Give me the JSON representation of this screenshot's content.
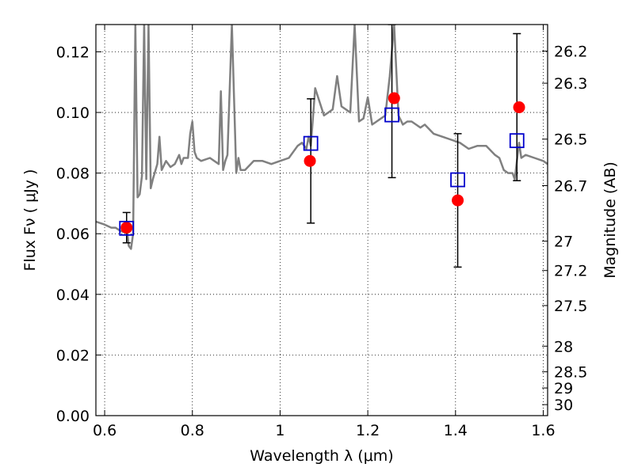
{
  "chart_data": {
    "type": "scatter",
    "xlabel": "Wavelength  λ (μm)",
    "ylabel": "Flux  Fν  ( μJy )",
    "ylabel_right": "Magnitude (AB)",
    "xlim": [
      0.58,
      1.61
    ],
    "ylim": [
      0.0,
      0.129
    ],
    "grid": true,
    "x_ticks": [
      {
        "value": 0.6,
        "label": "0.6"
      },
      {
        "value": 0.8,
        "label": "0.8"
      },
      {
        "value": 1.0,
        "label": "1"
      },
      {
        "value": 1.2,
        "label": "1.2"
      },
      {
        "value": 1.4,
        "label": "1.4"
      },
      {
        "value": 1.6,
        "label": "1.6"
      }
    ],
    "y_ticks": [
      {
        "value": 0.0,
        "label": "0.00"
      },
      {
        "value": 0.02,
        "label": "0.02"
      },
      {
        "value": 0.04,
        "label": "0.04"
      },
      {
        "value": 0.06,
        "label": "0.06"
      },
      {
        "value": 0.08,
        "label": "0.08"
      },
      {
        "value": 0.1,
        "label": "0.10"
      },
      {
        "value": 0.12,
        "label": "0.12"
      }
    ],
    "mag_ticks": [
      {
        "value": 26.2,
        "label": "26.2"
      },
      {
        "value": 26.3,
        "label": "26.3"
      },
      {
        "value": 26.5,
        "label": "26.5"
      },
      {
        "value": 26.7,
        "label": "26.7"
      },
      {
        "value": 27.0,
        "label": "27"
      },
      {
        "value": 27.2,
        "label": "27.2"
      },
      {
        "value": 27.5,
        "label": "27.5"
      },
      {
        "value": 28.0,
        "label": "28"
      },
      {
        "value": 28.5,
        "label": "28.5"
      },
      {
        "value": 29.0,
        "label": "29"
      },
      {
        "value": 30.0,
        "label": "30"
      }
    ],
    "series": [
      {
        "kind": "line",
        "color": "#808080",
        "x": [
          0.58,
          0.6,
          0.615,
          0.625,
          0.635,
          0.645,
          0.652,
          0.655,
          0.66,
          0.665,
          0.67,
          0.675,
          0.68,
          0.685,
          0.69,
          0.695,
          0.7,
          0.705,
          0.71,
          0.72,
          0.725,
          0.73,
          0.74,
          0.75,
          0.76,
          0.77,
          0.775,
          0.78,
          0.79,
          0.795,
          0.8,
          0.805,
          0.81,
          0.82,
          0.84,
          0.86,
          0.865,
          0.87,
          0.875,
          0.88,
          0.89,
          0.9,
          0.905,
          0.91,
          0.92,
          0.94,
          0.96,
          0.98,
          1.0,
          1.02,
          1.04,
          1.05,
          1.06,
          1.065,
          1.07,
          1.08,
          1.1,
          1.11,
          1.12,
          1.13,
          1.14,
          1.15,
          1.16,
          1.17,
          1.18,
          1.19,
          1.2,
          1.21,
          1.22,
          1.23,
          1.24,
          1.25,
          1.26,
          1.27,
          1.28,
          1.29,
          1.3,
          1.31,
          1.32,
          1.33,
          1.35,
          1.37,
          1.39,
          1.41,
          1.43,
          1.45,
          1.47,
          1.49,
          1.5,
          1.51,
          1.52,
          1.53,
          1.535,
          1.545,
          1.55,
          1.56,
          1.58,
          1.6,
          1.61
        ],
        "y": [
          0.064,
          0.063,
          0.062,
          0.062,
          0.061,
          0.0605,
          0.06,
          0.056,
          0.055,
          0.06,
          0.129,
          0.072,
          0.073,
          0.079,
          0.129,
          0.078,
          0.129,
          0.075,
          0.078,
          0.083,
          0.092,
          0.081,
          0.084,
          0.082,
          0.083,
          0.086,
          0.083,
          0.085,
          0.085,
          0.093,
          0.097,
          0.087,
          0.085,
          0.084,
          0.085,
          0.083,
          0.107,
          0.081,
          0.084,
          0.086,
          0.129,
          0.08,
          0.085,
          0.081,
          0.081,
          0.084,
          0.084,
          0.083,
          0.084,
          0.085,
          0.089,
          0.09,
          0.088,
          0.092,
          0.089,
          0.108,
          0.099,
          0.1,
          0.101,
          0.112,
          0.102,
          0.101,
          0.1,
          0.129,
          0.097,
          0.098,
          0.105,
          0.096,
          0.097,
          0.098,
          0.099,
          0.112,
          0.129,
          0.099,
          0.096,
          0.097,
          0.097,
          0.096,
          0.095,
          0.096,
          0.093,
          0.092,
          0.091,
          0.09,
          0.088,
          0.089,
          0.089,
          0.086,
          0.085,
          0.081,
          0.08,
          0.08,
          0.078,
          0.09,
          0.085,
          0.086,
          0.085,
          0.084,
          0.083
        ]
      },
      {
        "kind": "points",
        "marker": "circle",
        "color": "#ff0000",
        "points": [
          {
            "x": 0.65,
            "y": 0.062
          },
          {
            "x": 1.068,
            "y": 0.084
          },
          {
            "x": 1.26,
            "y": 0.1047
          },
          {
            "x": 1.405,
            "y": 0.071
          },
          {
            "x": 1.545,
            "y": 0.1017
          }
        ]
      },
      {
        "kind": "points",
        "marker": "square",
        "color": "#0000cc",
        "points": [
          {
            "x": 0.65,
            "y": 0.0618,
            "yerr_low": 0.057,
            "yerr_high": 0.067
          },
          {
            "x": 1.07,
            "y": 0.0898,
            "yerr_low": 0.0635,
            "yerr_high": 0.1045
          },
          {
            "x": 1.255,
            "y": 0.0992,
            "yerr_low": 0.0785,
            "yerr_high": 0.129
          },
          {
            "x": 1.405,
            "y": 0.0778,
            "yerr_low": 0.049,
            "yerr_high": 0.093
          },
          {
            "x": 1.54,
            "y": 0.0907,
            "yerr_low": 0.0775,
            "yerr_high": 0.126
          }
        ]
      }
    ]
  }
}
